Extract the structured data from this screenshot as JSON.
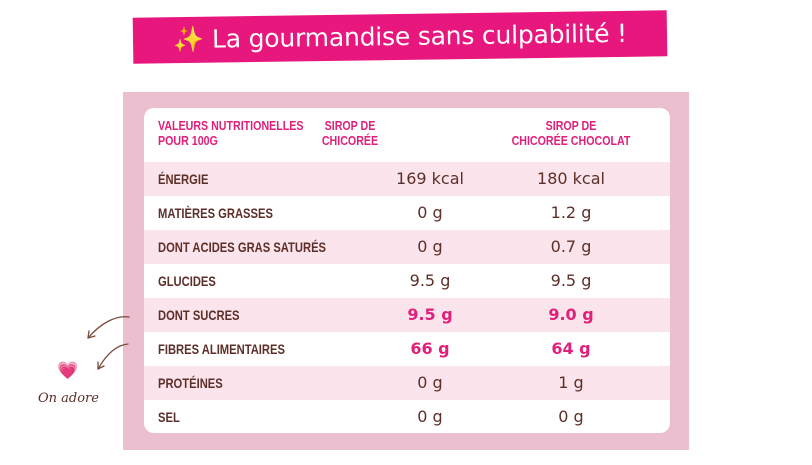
{
  "banner": {
    "sparkle": "✨",
    "text": "La gourmandise sans culpabilité !"
  },
  "table": {
    "headers": [
      "VALEURS NUTRITIONELLES\nPOUR 100G",
      "SIROP DE\nCHICORÉE",
      "SIROP DE\nCHICORÉE CHOCOLAT"
    ],
    "rows": [
      {
        "label": "ÉNERGIE",
        "v1": "169 kcal",
        "v2": "180 kcal",
        "highlight": false
      },
      {
        "label": "MATIÈRES GRASSES",
        "v1": "0 g",
        "v2": "1.2 g",
        "highlight": false
      },
      {
        "label": "DONT ACIDES GRAS SATURÉS",
        "v1": "0 g",
        "v2": "0.7 g",
        "highlight": false
      },
      {
        "label": "GLUCIDES",
        "v1": "9.5 g",
        "v2": "9.5 g",
        "highlight": false
      },
      {
        "label": "DONT SUCRES",
        "v1": "9.5 g",
        "v2": "9.0 g",
        "highlight": true
      },
      {
        "label": "FIBRES ALIMENTAIRES",
        "v1": "66 g",
        "v2": "64 g",
        "highlight": true
      },
      {
        "label": "PROTÉINES",
        "v1": "0 g",
        "v2": "1 g",
        "highlight": false
      },
      {
        "label": "SEL",
        "v1": "0 g",
        "v2": "0 g",
        "highlight": false
      }
    ]
  },
  "annotation": {
    "heart": "💗",
    "text": "On adore"
  },
  "colors": {
    "accent": "#e8177e",
    "text": "#5c2f28",
    "panel": "#ecbfd0",
    "row_stripe": "#fce4ec"
  }
}
